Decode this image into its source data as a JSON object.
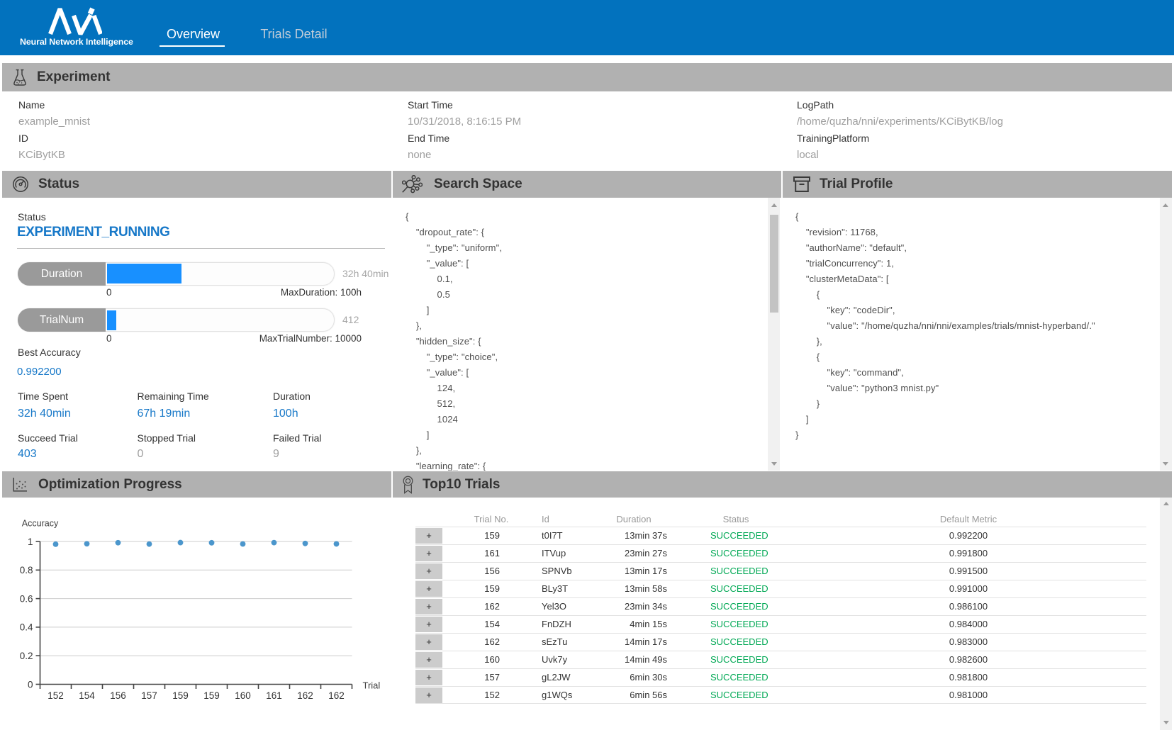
{
  "colors": {
    "brand_blue": "#0272be",
    "accent_blue": "#1778c8",
    "progress_blue": "#1890ff",
    "success_green": "#00a854",
    "section_bar_gray": "#b1b1b1",
    "pill_gray": "#9a9a9a",
    "value_gray": "#9e9e9e",
    "scatter_dot": "#4b96cc"
  },
  "header": {
    "logo_caption": "Neural Network Intelligence",
    "logo_icon": "nni-logo-mark",
    "tabs": [
      {
        "label": "Overview",
        "active": true
      },
      {
        "label": "Trials Detail",
        "active": false
      }
    ]
  },
  "experiment": {
    "title": "Experiment",
    "icon": "flask-icon",
    "fields": [
      {
        "label": "Name",
        "value": "example_mnist"
      },
      {
        "label": "ID",
        "value": "KCiBytKB"
      },
      {
        "label": "Start Time",
        "value": "10/31/2018, 8:16:15 PM"
      },
      {
        "label": "End Time",
        "value": "none"
      },
      {
        "label": "LogPath",
        "value": "/home/quzha/nni/experiments/KCiBytKB/log"
      },
      {
        "label": "TrainingPlatform",
        "value": "local"
      }
    ]
  },
  "status_panel": {
    "title": "Status",
    "icon": "gauge-icon",
    "status_label": "Status",
    "status_value": "EXPERIMENT_RUNNING",
    "bars": [
      {
        "label": "Duration",
        "value_text": "32h 40min",
        "min_label": "0",
        "max_label": "MaxDuration: 100h",
        "percent": 32.67
      },
      {
        "label": "TrialNum",
        "value_text": "412",
        "min_label": "0",
        "max_label": "MaxTrialNumber: 10000",
        "percent": 4.12
      }
    ],
    "best_accuracy_label": "Best Accuracy",
    "best_accuracy_value": "0.992200",
    "stats": [
      {
        "label": "Time Spent",
        "value": "32h 40min",
        "blue": true
      },
      {
        "label": "Remaining Time",
        "value": "67h 19min",
        "blue": true
      },
      {
        "label": "Duration",
        "value": "100h",
        "blue": true
      },
      {
        "label": "Succeed Trial",
        "value": "403",
        "blue": true
      },
      {
        "label": "Stopped Trial",
        "value": "0",
        "blue": false
      },
      {
        "label": "Failed Trial",
        "value": "9",
        "blue": false
      }
    ]
  },
  "search_space": {
    "title": "Search Space",
    "icon": "molecule-icon",
    "json_lines": [
      "{",
      "    \"dropout_rate\": {",
      "        \"_type\": \"uniform\",",
      "        \"_value\": [",
      "            0.1,",
      "            0.5",
      "        ]",
      "    },",
      "    \"hidden_size\": {",
      "        \"_type\": \"choice\",",
      "        \"_value\": [",
      "            124,",
      "            512,",
      "            1024",
      "        ]",
      "    },",
      "    \"learning_rate\": {"
    ]
  },
  "trial_profile": {
    "title": "Trial Profile",
    "icon": "archive-box-icon",
    "json_lines": [
      "{",
      "    \"revision\": 11768,",
      "    \"authorName\": \"default\",",
      "    \"trialConcurrency\": 1,",
      "    \"clusterMetaData\": [",
      "        {",
      "            \"key\": \"codeDir\",",
      "            \"value\": \"/home/quzha/nni/nni/examples/trials/mnist-hyperband/.\"",
      "        },",
      "        {",
      "            \"key\": \"command\",",
      "            \"value\": \"python3 mnist.py\"",
      "        }",
      "    ]",
      "}"
    ]
  },
  "optimization": {
    "title": "Optimization Progress",
    "icon": "scatter-chart-icon"
  },
  "chart_data": {
    "type": "scatter",
    "title": "Optimization Progress",
    "categories": [
      "152",
      "154",
      "156",
      "157",
      "159",
      "159",
      "160",
      "161",
      "162",
      "162"
    ],
    "values": [
      0.981,
      0.984,
      0.9915,
      0.9818,
      0.9922,
      0.991,
      0.9826,
      0.9918,
      0.9861,
      0.983
    ],
    "xlabel": "Trial",
    "ylabel": "Accuracy",
    "ylim": [
      0,
      1
    ],
    "yticks": [
      0,
      0.2,
      0.4,
      0.6,
      0.8,
      1
    ],
    "grid": true,
    "legend": false
  },
  "top10": {
    "title": "Top10 Trials",
    "icon": "medal-icon",
    "expand_symbol": "+",
    "columns": [
      "Trial No.",
      "Id",
      "Duration",
      "Status",
      "Default Metric"
    ],
    "rows": [
      {
        "trial_no": "159",
        "id": "t0I7T",
        "duration": "13min 37s",
        "status": "SUCCEEDED",
        "metric": "0.992200"
      },
      {
        "trial_no": "161",
        "id": "ITVup",
        "duration": "23min 27s",
        "status": "SUCCEEDED",
        "metric": "0.991800"
      },
      {
        "trial_no": "156",
        "id": "SPNVb",
        "duration": "13min 17s",
        "status": "SUCCEEDED",
        "metric": "0.991500"
      },
      {
        "trial_no": "159",
        "id": "BLy3T",
        "duration": "13min 58s",
        "status": "SUCCEEDED",
        "metric": "0.991000"
      },
      {
        "trial_no": "162",
        "id": "Yel3O",
        "duration": "23min 34s",
        "status": "SUCCEEDED",
        "metric": "0.986100"
      },
      {
        "trial_no": "154",
        "id": "FnDZH",
        "duration": "4min 15s",
        "status": "SUCCEEDED",
        "metric": "0.984000"
      },
      {
        "trial_no": "162",
        "id": "sEzTu",
        "duration": "14min 17s",
        "status": "SUCCEEDED",
        "metric": "0.983000"
      },
      {
        "trial_no": "160",
        "id": "Uvk7y",
        "duration": "14min 49s",
        "status": "SUCCEEDED",
        "metric": "0.982600"
      },
      {
        "trial_no": "157",
        "id": "gL2JW",
        "duration": "6min 30s",
        "status": "SUCCEEDED",
        "metric": "0.981800"
      },
      {
        "trial_no": "152",
        "id": "g1WQs",
        "duration": "6min 56s",
        "status": "SUCCEEDED",
        "metric": "0.981000"
      }
    ]
  }
}
